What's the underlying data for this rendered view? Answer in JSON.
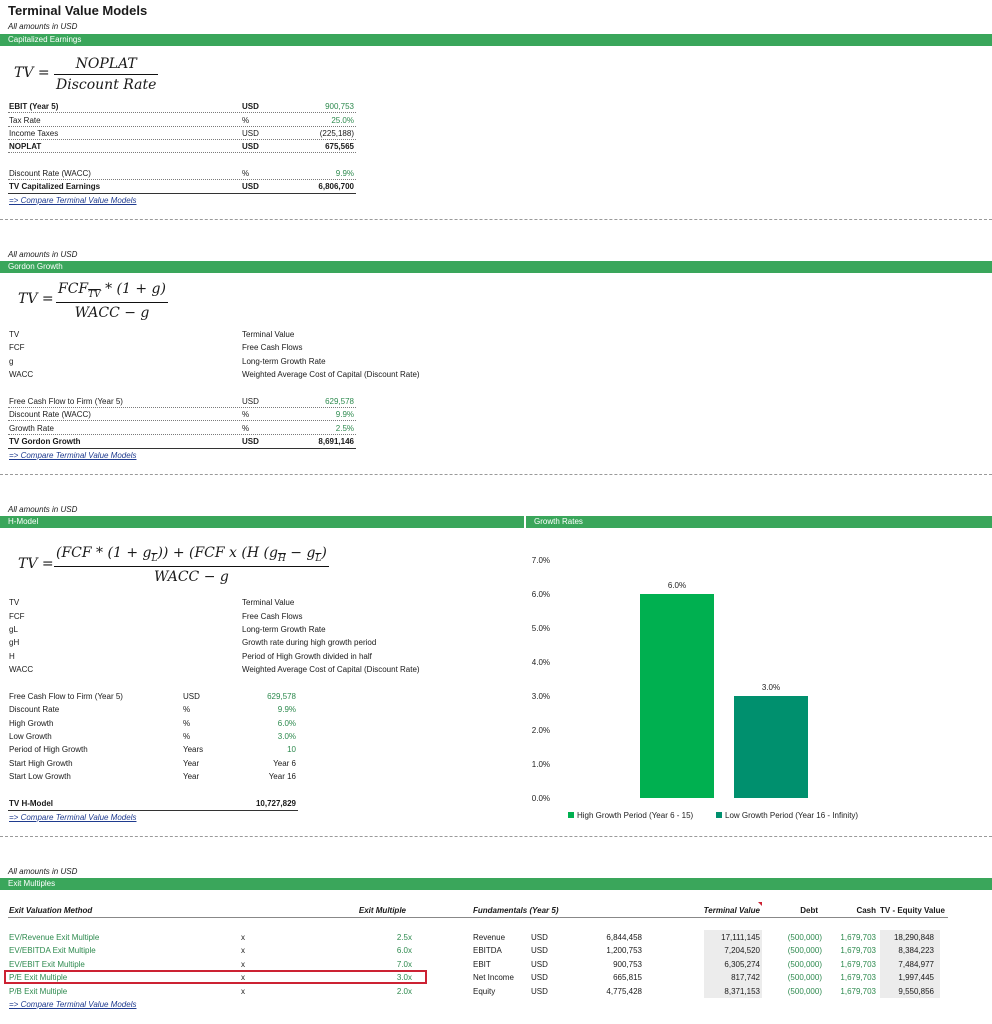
{
  "page_title": "Terminal Value Models",
  "amounts_note": "All amounts in USD",
  "compare_link": "=> Compare Terminal Value Models",
  "capitalized": {
    "header": "Capitalized Earnings",
    "formula": {
      "lhs": "TV =",
      "numerator": "NOPLAT",
      "denominator": "Discount Rate"
    },
    "rows": [
      {
        "label": "EBIT (Year 5)",
        "unit": "USD",
        "value": "900,753"
      },
      {
        "label": "Tax Rate",
        "unit": "%",
        "value": "25.0%"
      },
      {
        "label": "Income Taxes",
        "unit": "USD",
        "value": "(225,188)"
      },
      {
        "label": "NOPLAT",
        "unit": "USD",
        "value": "675,565"
      },
      {
        "label": "Discount Rate (WACC)",
        "unit": "%",
        "value": "9.9%"
      },
      {
        "label": "TV Capitalized Earnings",
        "unit": "USD",
        "value": "6,806,700"
      }
    ]
  },
  "gordon": {
    "header": "Gordon Growth",
    "formula": {
      "lhs": "TV =",
      "numerator": "FCF",
      "num_sub": "TV",
      "num_rest": " * (1 + g)",
      "denominator": "WACC − g"
    },
    "definitions": [
      {
        "term": "TV",
        "meaning": "Terminal Value"
      },
      {
        "term": "FCF",
        "meaning": "Free Cash Flows"
      },
      {
        "term": "g",
        "meaning": "Long-term Growth Rate"
      },
      {
        "term": "WACC",
        "meaning": "Weighted Average Cost of Capital (Discount Rate)"
      }
    ],
    "rows": [
      {
        "label": "Free Cash Flow to Firm (Year 5)",
        "unit": "USD",
        "value": "629,578"
      },
      {
        "label": "Discount Rate (WACC)",
        "unit": "%",
        "value": "9.9%"
      },
      {
        "label": "Growth Rate",
        "unit": "%",
        "value": "2.5%"
      },
      {
        "label": "TV Gordon Growth",
        "unit": "USD",
        "value": "8,691,146"
      }
    ]
  },
  "hmodel": {
    "header": "H-Model",
    "growth_header": "Growth Rates",
    "formula": {
      "lhs": "TV =",
      "p1": "(FCF * (1 + g",
      "s1": "L",
      "p2": ")) + (FCF x (H (g",
      "s2": "H",
      "p3": " − g",
      "s3": "L",
      "p4": ")",
      "denominator": "WACC − g"
    },
    "definitions": [
      {
        "term": "TV",
        "meaning": "Terminal Value"
      },
      {
        "term": "FCF",
        "meaning": "Free Cash Flows"
      },
      {
        "term": "gL",
        "meaning": "Long-term Growth Rate"
      },
      {
        "term": "gH",
        "meaning": "Growth rate during high growth period"
      },
      {
        "term": "H",
        "meaning": "Period of High Growth divided in half"
      },
      {
        "term": "WACC",
        "meaning": "Weighted Average Cost of Capital (Discount Rate)"
      }
    ],
    "rows": [
      {
        "label": "Free Cash Flow to Firm (Year 5)",
        "unit": "USD",
        "value": "629,578"
      },
      {
        "label": "Discount Rate",
        "unit": "%",
        "value": "9.9%"
      },
      {
        "label": "High Growth",
        "unit": "%",
        "value": "6.0%"
      },
      {
        "label": "Low Growth",
        "unit": "%",
        "value": "3.0%"
      },
      {
        "label": "Period of High Growth",
        "unit": "Years",
        "value": "10"
      },
      {
        "label": "Start High Growth",
        "unit": "Year",
        "value": "Year 6"
      },
      {
        "label": "Start Low Growth",
        "unit": "Year",
        "value": "Year 16"
      }
    ],
    "total": {
      "label": "TV H-Model",
      "value": "10,727,829"
    }
  },
  "chart_data": {
    "type": "bar",
    "title": "Growth Rates",
    "categories": [
      "High Growth Period (Year 6 - 15)",
      "Low Growth Period (Year 16 - Infinity)"
    ],
    "values": [
      6.0,
      3.0
    ],
    "value_labels": [
      "6.0%",
      "3.0%"
    ],
    "colors": [
      "#00b050",
      "#00906e"
    ],
    "ylim": [
      0,
      7
    ],
    "yticks": [
      "0.0%",
      "1.0%",
      "2.0%",
      "3.0%",
      "4.0%",
      "5.0%",
      "6.0%",
      "7.0%"
    ],
    "legend_position": "bottom",
    "grid": false
  },
  "exit": {
    "header": "Exit Multiples",
    "col_method": "Exit Valuation Method",
    "col_multiple": "Exit Multiple",
    "col_fund": "Fundamentals (Year 5)",
    "col_tv": "Terminal Value",
    "col_debt": "Debt",
    "col_cash": "Cash",
    "col_eq": "TV - Equity Value",
    "rows": [
      {
        "method": "EV/Revenue Exit Multiple",
        "x": "x",
        "multiple": "2.5x",
        "fund": "Revenue",
        "unit": "USD",
        "fund_val": "6,844,458",
        "tv": "17,111,145",
        "debt": "(500,000)",
        "cash": "1,679,703",
        "equity": "18,290,848"
      },
      {
        "method": "EV/EBITDA Exit Multiple",
        "x": "x",
        "multiple": "6.0x",
        "fund": "EBITDA",
        "unit": "USD",
        "fund_val": "1,200,753",
        "tv": "7,204,520",
        "debt": "(500,000)",
        "cash": "1,679,703",
        "equity": "8,384,223"
      },
      {
        "method": "EV/EBIT Exit Multiple",
        "x": "x",
        "multiple": "7.0x",
        "fund": "EBIT",
        "unit": "USD",
        "fund_val": "900,753",
        "tv": "6,305,274",
        "debt": "(500,000)",
        "cash": "1,679,703",
        "equity": "7,484,977"
      },
      {
        "method": "P/E Exit Multiple",
        "x": "x",
        "multiple": "3.0x",
        "fund": "Net Income",
        "unit": "USD",
        "fund_val": "665,815",
        "tv": "817,742",
        "debt": "(500,000)",
        "cash": "1,679,703",
        "equity": "1,997,445"
      },
      {
        "method": "P/B Exit Multiple",
        "x": "x",
        "multiple": "2.0x",
        "fund": "Equity",
        "unit": "USD",
        "fund_val": "4,775,428",
        "tv": "8,371,153",
        "debt": "(500,000)",
        "cash": "1,679,703",
        "equity": "9,550,856"
      }
    ]
  },
  "colors": {
    "band": "#3aa65b",
    "input_green": "#2d8a4e",
    "link": "#1f3b8f",
    "highlight": "#cc2233"
  }
}
